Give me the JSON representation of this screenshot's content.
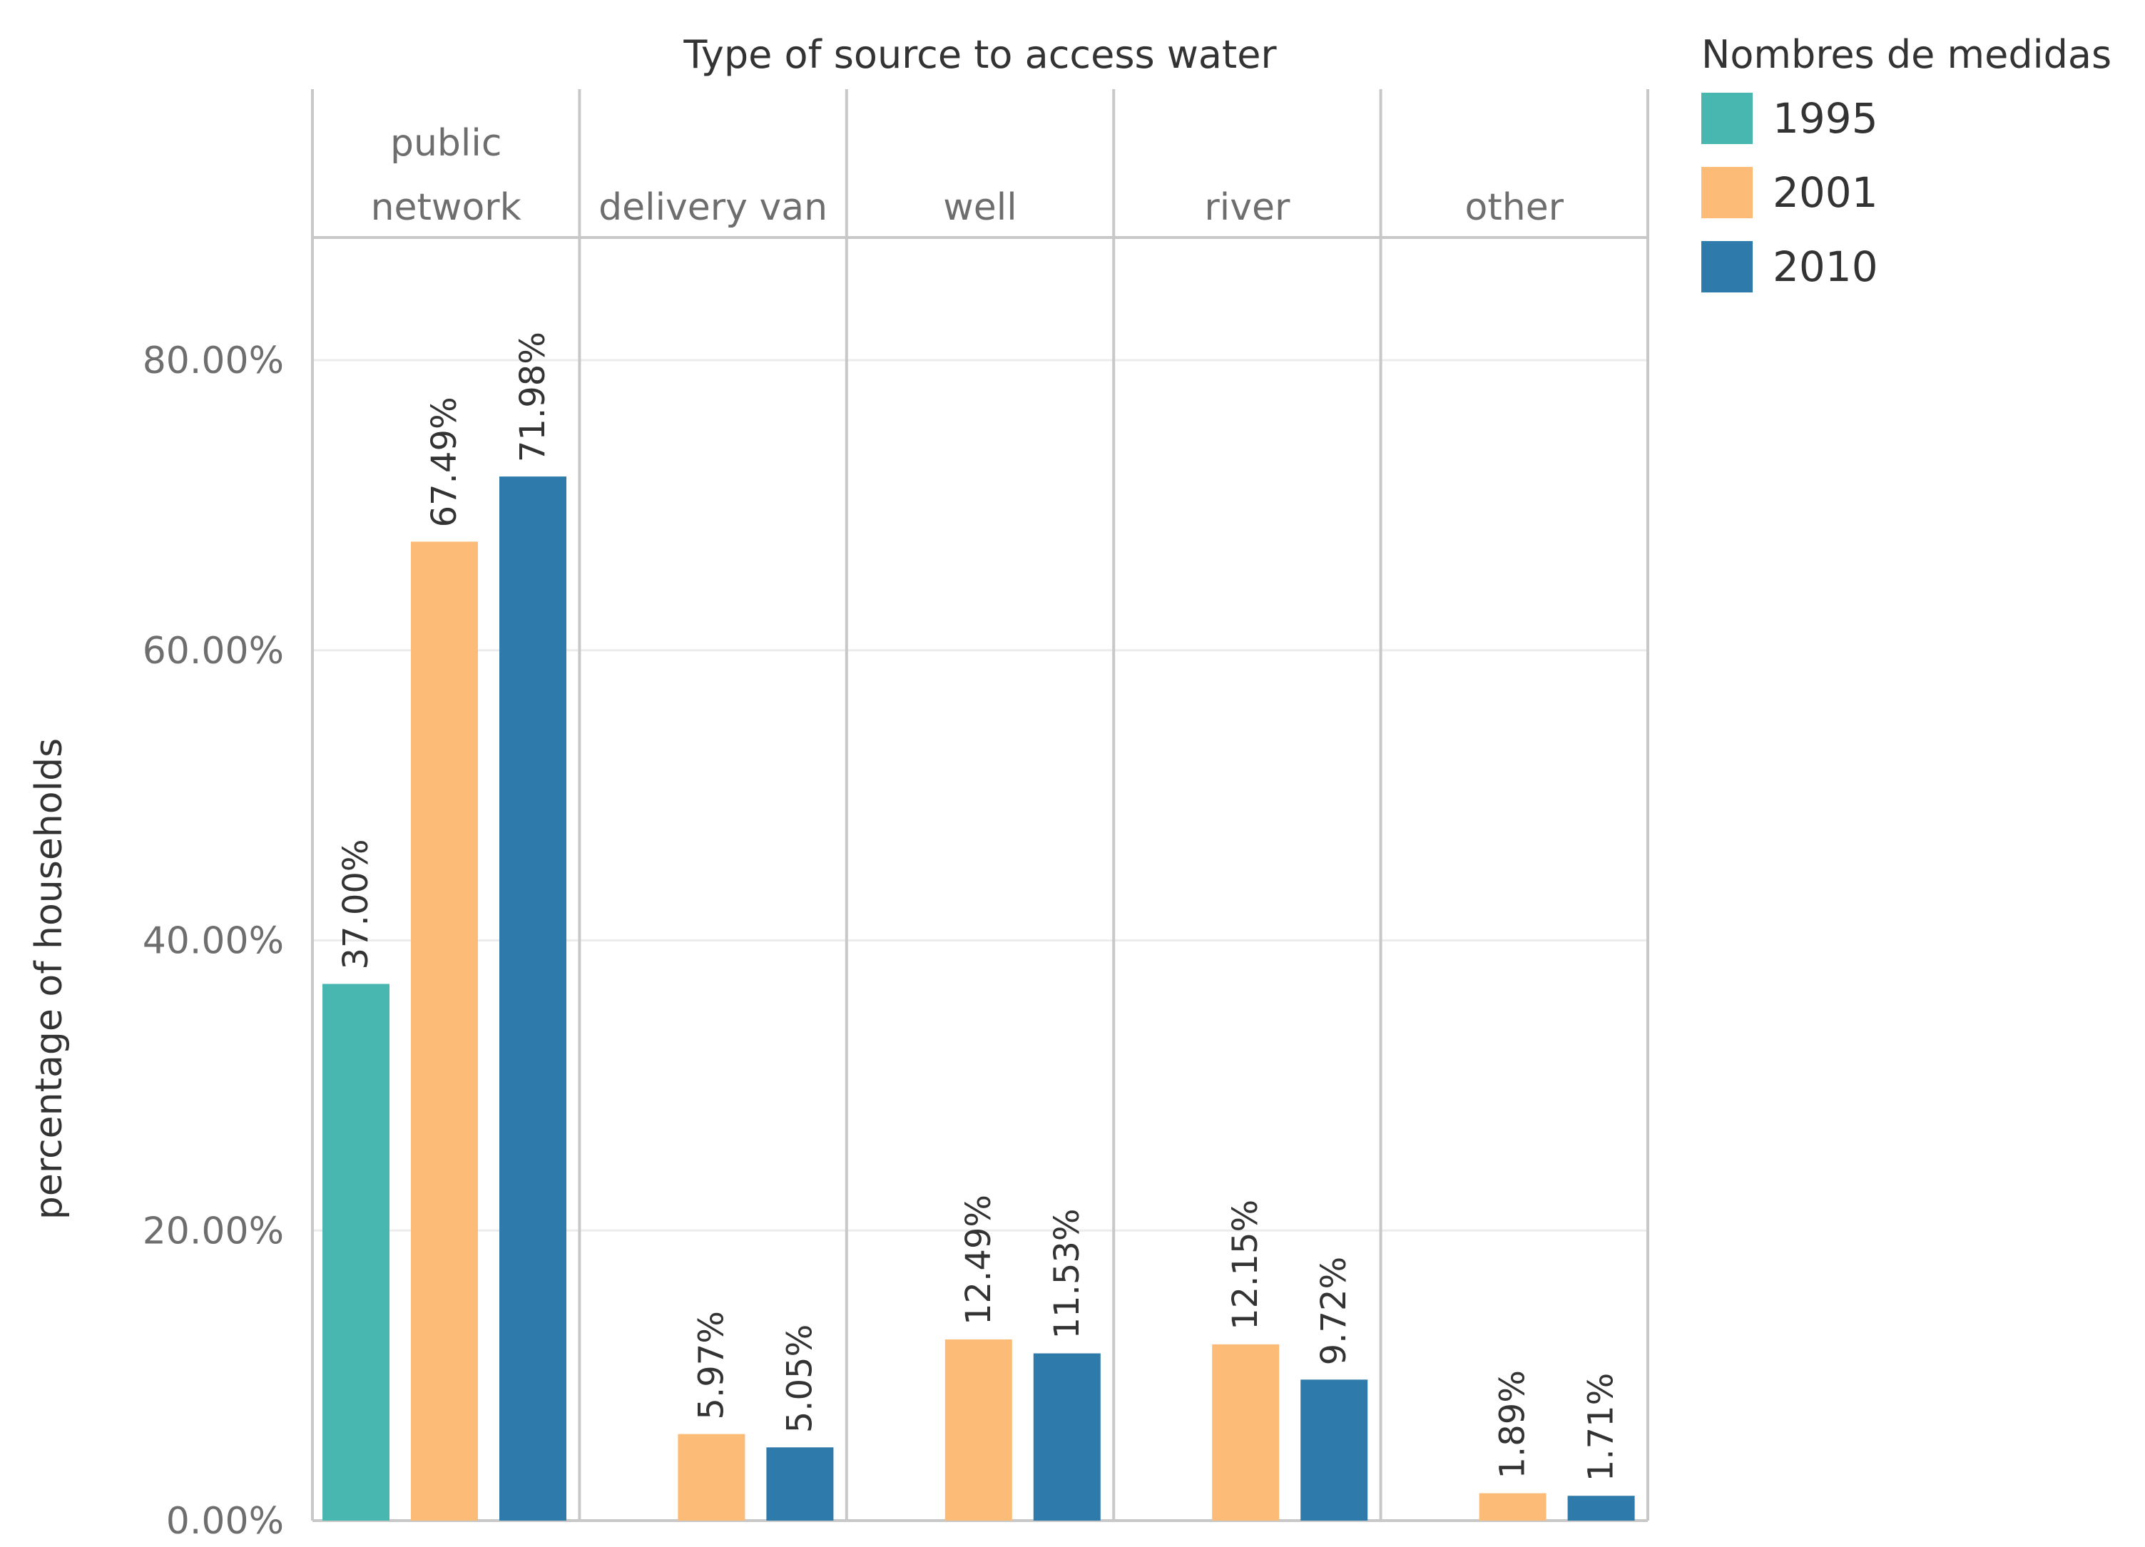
{
  "chart_data": {
    "type": "bar",
    "title": "Type of source to access water",
    "ylabel": "percentage of households",
    "xlabel": "",
    "ylim": [
      0,
      90
    ],
    "yticks": [
      0,
      20,
      40,
      60,
      80
    ],
    "ytick_labels": [
      "0.00%",
      "20.00%",
      "40.00%",
      "60.00%",
      "80.00%"
    ],
    "grid": true,
    "categories": [
      {
        "lines": [
          "public",
          "network"
        ]
      },
      {
        "lines": [
          "delivery van"
        ]
      },
      {
        "lines": [
          "well"
        ]
      },
      {
        "lines": [
          "river"
        ]
      },
      {
        "lines": [
          "other"
        ]
      }
    ],
    "legend": {
      "title": "Nombres de medidas",
      "position": "top-right"
    },
    "series": [
      {
        "name": "1995",
        "color": "#48b7b0",
        "values": [
          37.0,
          null,
          null,
          null,
          null
        ],
        "labels": [
          "37.00%",
          "",
          "",
          "",
          ""
        ]
      },
      {
        "name": "2001",
        "color": "#fcbc77",
        "values": [
          67.49,
          5.97,
          12.49,
          12.15,
          1.89
        ],
        "labels": [
          "67.49%",
          "5.97%",
          "12.49%",
          "12.15%",
          "1.89%"
        ]
      },
      {
        "name": "2010",
        "color": "#2e7aab",
        "values": [
          71.98,
          5.05,
          11.53,
          9.72,
          1.71
        ],
        "labels": [
          "71.98%",
          "5.05%",
          "11.53%",
          "9.72%",
          "1.71%"
        ]
      }
    ]
  }
}
